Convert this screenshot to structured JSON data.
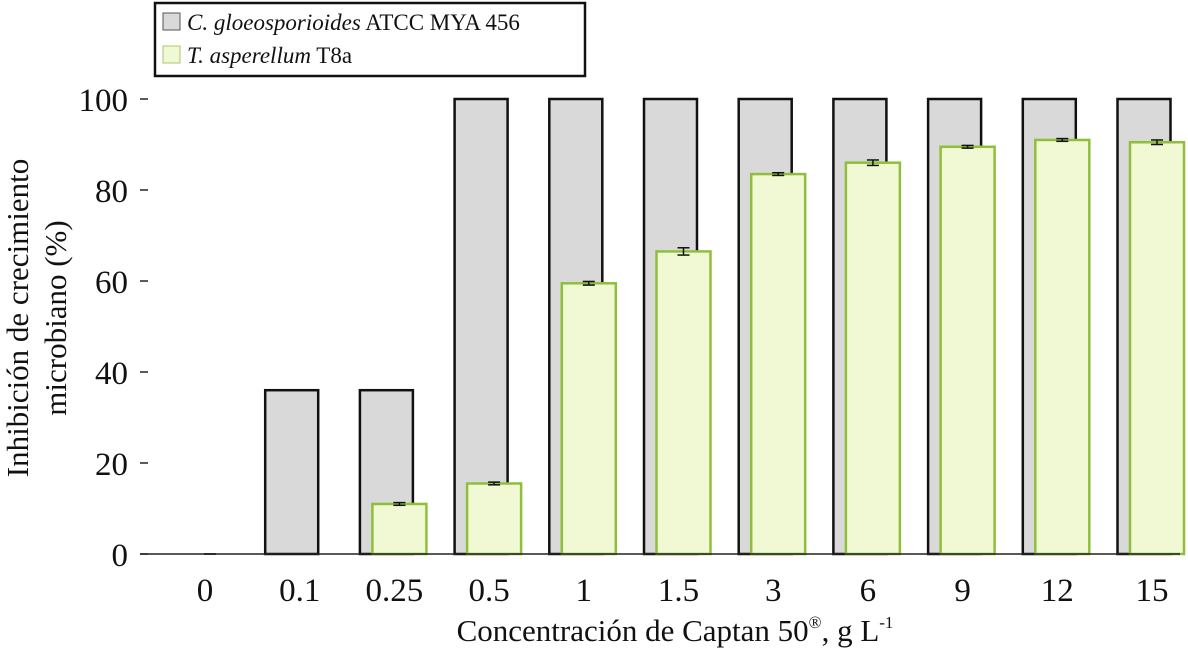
{
  "chart_data": {
    "type": "bar",
    "categories": [
      "0",
      "0.1",
      "0.25",
      "0.5",
      "1",
      "1.5",
      "3",
      "6",
      "9",
      "12",
      "15"
    ],
    "series": [
      {
        "name": "C. gloeosporioides ATCC MYA 456",
        "name_italic": "C. gloeosporioides",
        "name_rest": " ATCC MYA 456",
        "color": "#d9d9d9",
        "stroke": "#111111",
        "values": [
          0,
          36,
          36,
          100,
          100,
          100,
          100,
          100,
          100,
          100,
          100
        ]
      },
      {
        "name": "T. asperellum T8a",
        "name_italic": "T. asperellum",
        "name_rest": " T8a",
        "color": "#f0f8d4",
        "stroke": "#8fbf3a",
        "values": [
          0,
          0,
          11,
          15.5,
          59.5,
          66.5,
          83.5,
          86,
          89.5,
          91,
          90.5
        ],
        "errors": [
          0,
          0,
          0.3,
          0.3,
          0.4,
          0.8,
          0.3,
          0.6,
          0.3,
          0.3,
          0.5
        ]
      }
    ],
    "ylabel_line1": "Inhibición de crecimiento",
    "ylabel_line2": "microbiano (%)",
    "xlabel_main": "Concentración de Captan 50",
    "xlabel_sup1": "®",
    "xlabel_mid": ", g L",
    "xlabel_sup2": "-1",
    "ylim": [
      0,
      100
    ],
    "yticks": [
      "0",
      "20",
      "40",
      "60",
      "80",
      "100"
    ],
    "grid": false,
    "legend_position": "top-left"
  }
}
